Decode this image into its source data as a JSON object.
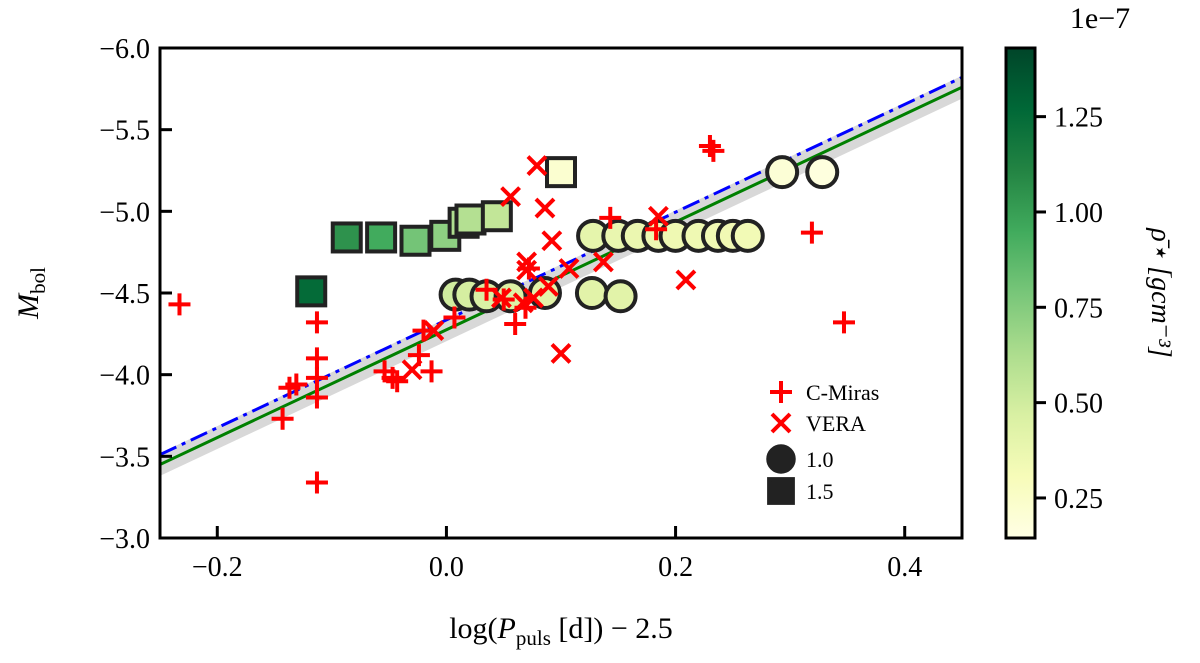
{
  "chart_data": {
    "type": "scatter",
    "xlabel": {
      "main": "log(",
      "var": "P",
      "sub": "puls",
      "rest": " [d]) − 2.5"
    },
    "ylabel": {
      "var": "M",
      "sub": "bol"
    },
    "xlim": [
      -0.25,
      0.45
    ],
    "ylim": [
      -6.0,
      -3.0
    ],
    "y_inverted": true,
    "xticks": [
      -0.2,
      0.0,
      0.2,
      0.4
    ],
    "xtick_labels": [
      "−0.2",
      "0.0",
      "0.2",
      "0.4"
    ],
    "yticks": [
      -6.0,
      -5.5,
      -5.0,
      -4.5,
      -4.0,
      -3.5,
      -3.0
    ],
    "ytick_labels": [
      "−6.0",
      "−5.5",
      "−5.0",
      "−4.5",
      "−4.0",
      "−3.5",
      "−3.0"
    ],
    "grid": false,
    "legend_placement": "lower-right",
    "legend": [
      {
        "label": "C-Miras",
        "marker": "plus",
        "color": "#ff0000"
      },
      {
        "label": "VERA",
        "marker": "x",
        "color": "#ff0000"
      },
      {
        "label": "1.0",
        "marker": "circle",
        "color": "#222222"
      },
      {
        "label": "1.5",
        "marker": "square",
        "color": "#222222"
      }
    ],
    "series": [
      {
        "name": "C-Miras",
        "marker": "plus",
        "color": "#ff0000",
        "x": [
          -0.233,
          -0.113,
          -0.113,
          -0.113,
          -0.113,
          -0.143,
          -0.137,
          -0.131,
          -0.113,
          -0.054,
          -0.047,
          -0.043,
          -0.024,
          -0.013,
          -0.02,
          0.007,
          0.035,
          0.05,
          0.06,
          0.069,
          0.072,
          0.143,
          0.183,
          0.23,
          0.233,
          0.319,
          0.347
        ],
        "y": [
          -4.43,
          -4.32,
          -4.1,
          -3.98,
          -3.86,
          -3.73,
          -3.92,
          -3.94,
          -3.34,
          -4.02,
          -3.98,
          -3.96,
          -4.12,
          -4.02,
          -4.27,
          -4.35,
          -4.52,
          -4.46,
          -4.31,
          -4.41,
          -4.65,
          -4.96,
          -4.89,
          -5.4,
          -5.37,
          -4.87,
          -4.32
        ]
      },
      {
        "name": "VERA",
        "marker": "x",
        "color": "#ff0000",
        "x": [
          0.056,
          0.079,
          0.086,
          0.092,
          0.089,
          0.067,
          0.07,
          0.07,
          -0.03,
          0.1,
          0.107,
          0.137,
          0.185,
          0.209,
          -0.011,
          0.048,
          0.076
        ],
        "y": [
          -5.09,
          -5.28,
          -5.02,
          -4.82,
          -4.54,
          -4.44,
          -4.64,
          -4.69,
          -4.03,
          -4.13,
          -4.65,
          -4.69,
          -4.97,
          -4.58,
          -4.27,
          -4.47,
          -4.47
        ]
      },
      {
        "name": "1.0",
        "marker": "circle",
        "x": [
          0.008,
          0.02,
          0.035,
          0.056,
          0.086,
          0.127,
          0.152,
          0.128,
          0.15,
          0.167,
          0.185,
          0.2,
          0.22,
          0.237,
          0.25,
          0.263,
          0.293,
          0.328
        ],
        "y": [
          -4.49,
          -4.49,
          -4.48,
          -4.48,
          -4.5,
          -4.5,
          -4.48,
          -4.85,
          -4.85,
          -4.85,
          -4.85,
          -4.85,
          -4.85,
          -4.85,
          -4.85,
          -4.85,
          -5.24,
          -5.24
        ],
        "rho": [
          0.5,
          0.48,
          0.46,
          0.45,
          0.42,
          0.42,
          0.42,
          0.4,
          0.38,
          0.37,
          0.36,
          0.35,
          0.35,
          0.34,
          0.34,
          0.33,
          0.2,
          0.17
        ]
      },
      {
        "name": "1.5",
        "marker": "square",
        "x": [
          -0.118,
          -0.087,
          -0.057,
          -0.027,
          -0.001,
          0.015,
          0.021,
          0.044,
          0.1
        ],
        "y": [
          -4.51,
          -4.84,
          -4.84,
          -4.82,
          -4.85,
          -4.93,
          -4.95,
          -4.97,
          -5.24
        ],
        "rho": [
          1.25,
          1.05,
          0.95,
          0.8,
          0.72,
          0.62,
          0.6,
          0.55,
          0.22
        ]
      }
    ],
    "fit_lines": [
      {
        "color": "#008000",
        "style": "solid",
        "x": [
          -0.25,
          0.45
        ],
        "y": [
          -3.45,
          -5.76
        ],
        "band": 0.07
      },
      {
        "color": "#0000ff",
        "style": "dashdot",
        "x": [
          -0.25,
          0.45
        ],
        "y": [
          -3.51,
          -5.82
        ]
      }
    ],
    "colorbar": {
      "colormap": "YlGn",
      "range": [
        0.145,
        1.43
      ],
      "ticks": [
        0.25,
        0.5,
        0.75,
        1.0,
        1.25
      ],
      "tick_labels": [
        "0.25",
        "0.50",
        "0.75",
        "1.00",
        "1.25"
      ],
      "offset_label": "1e−7",
      "label": "ρ̄⋆ [gcm⁻³]"
    }
  }
}
